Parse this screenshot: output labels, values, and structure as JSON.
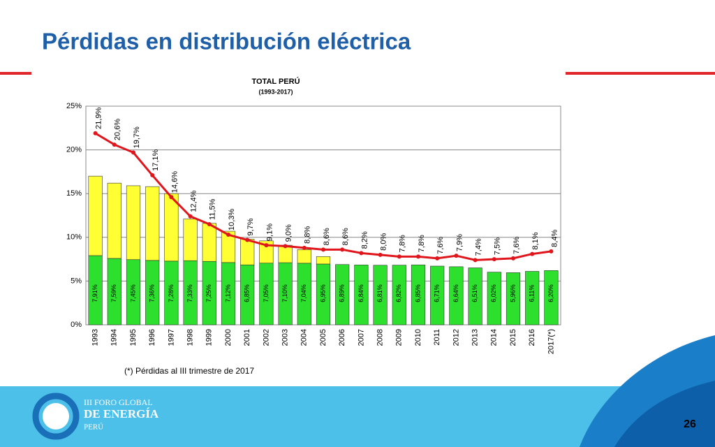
{
  "slide": {
    "title": "Pérdidas en distribución eléctrica",
    "footnote": "(*) Pérdidas al III trimestre de 2017",
    "logo_line1": "III FORO GLOBAL",
    "logo_line2": "DE ENERGÍA",
    "logo_line3": "PERÚ",
    "page_number": "26"
  },
  "chart_data": {
    "type": "bar",
    "stacked": true,
    "title": "TOTAL PERÚ",
    "subtitle": "(1993-2017)",
    "categories": [
      "1993",
      "1994",
      "1995",
      "1996",
      "1997",
      "1998",
      "1999",
      "2000",
      "2001",
      "2002",
      "2003",
      "2004",
      "2005",
      "2006",
      "2007",
      "2008",
      "2009",
      "2010",
      "2011",
      "2012",
      "2013",
      "2014",
      "2015",
      "2016",
      "2017(*)"
    ],
    "ylim": [
      0,
      25
    ],
    "yticks": [
      {
        "value": 0,
        "label": "0%"
      },
      {
        "value": 5,
        "label": "5%"
      },
      {
        "value": 10,
        "label": "10%"
      },
      {
        "value": 15,
        "label": "15%"
      },
      {
        "value": 20,
        "label": "20%"
      },
      {
        "value": 25,
        "label": "25%"
      }
    ],
    "grid": true,
    "series": [
      {
        "type": "bar",
        "color": "#2ee02e",
        "values": [
          7.91,
          7.59,
          7.45,
          7.36,
          7.28,
          7.33,
          7.25,
          7.12,
          6.85,
          7.05,
          7.1,
          7.04,
          6.95,
          6.89,
          6.84,
          6.81,
          6.82,
          6.85,
          6.71,
          6.64,
          6.51,
          6.02,
          5.96,
          6.11,
          6.2
        ],
        "value_labels": [
          "7,91%",
          "7,59%",
          "7,45%",
          "7,36%",
          "7,28%",
          "7,33%",
          "7,25%",
          "7,12%",
          "6,85%",
          "7,05%",
          "7,10%",
          "7,04%",
          "6,95%",
          "6,89%",
          "6,84%",
          "6,81%",
          "6,82%",
          "6,85%",
          "6,71%",
          "6,64%",
          "6,51%",
          "6,02%",
          "5,96%",
          "6,11%",
          "6,20%"
        ]
      },
      {
        "type": "bar",
        "color": "#ffff33",
        "values": [
          9.09,
          8.61,
          8.45,
          8.44,
          7.72,
          4.77,
          4.35,
          3.58,
          2.95,
          2.55,
          2.0,
          1.56,
          0.85,
          0,
          0,
          0,
          0,
          0,
          0,
          0,
          0,
          0,
          0,
          0,
          0
        ]
      },
      {
        "type": "line",
        "color": "#e0161c",
        "values": [
          21.9,
          20.6,
          19.7,
          17.1,
          14.6,
          12.4,
          11.5,
          10.3,
          9.7,
          9.1,
          9.0,
          8.8,
          8.6,
          8.6,
          8.2,
          8.0,
          7.8,
          7.8,
          7.6,
          7.9,
          7.4,
          7.5,
          7.6,
          8.1,
          8.4
        ],
        "value_labels": [
          "21,9%",
          "20,6%",
          "19,7%",
          "17,1%",
          "14,6%",
          "12,4%",
          "11,5%",
          "10,3%",
          "9,7%",
          "9,1%",
          "9,0%",
          "8,8%",
          "8,6%",
          "8,6%",
          "8,2%",
          "8,0%",
          "7,8%",
          "7,8%",
          "7,6%",
          "7,9%",
          "7,4%",
          "7,5%",
          "7,6%",
          "8,1%",
          "8,4%"
        ]
      }
    ]
  }
}
